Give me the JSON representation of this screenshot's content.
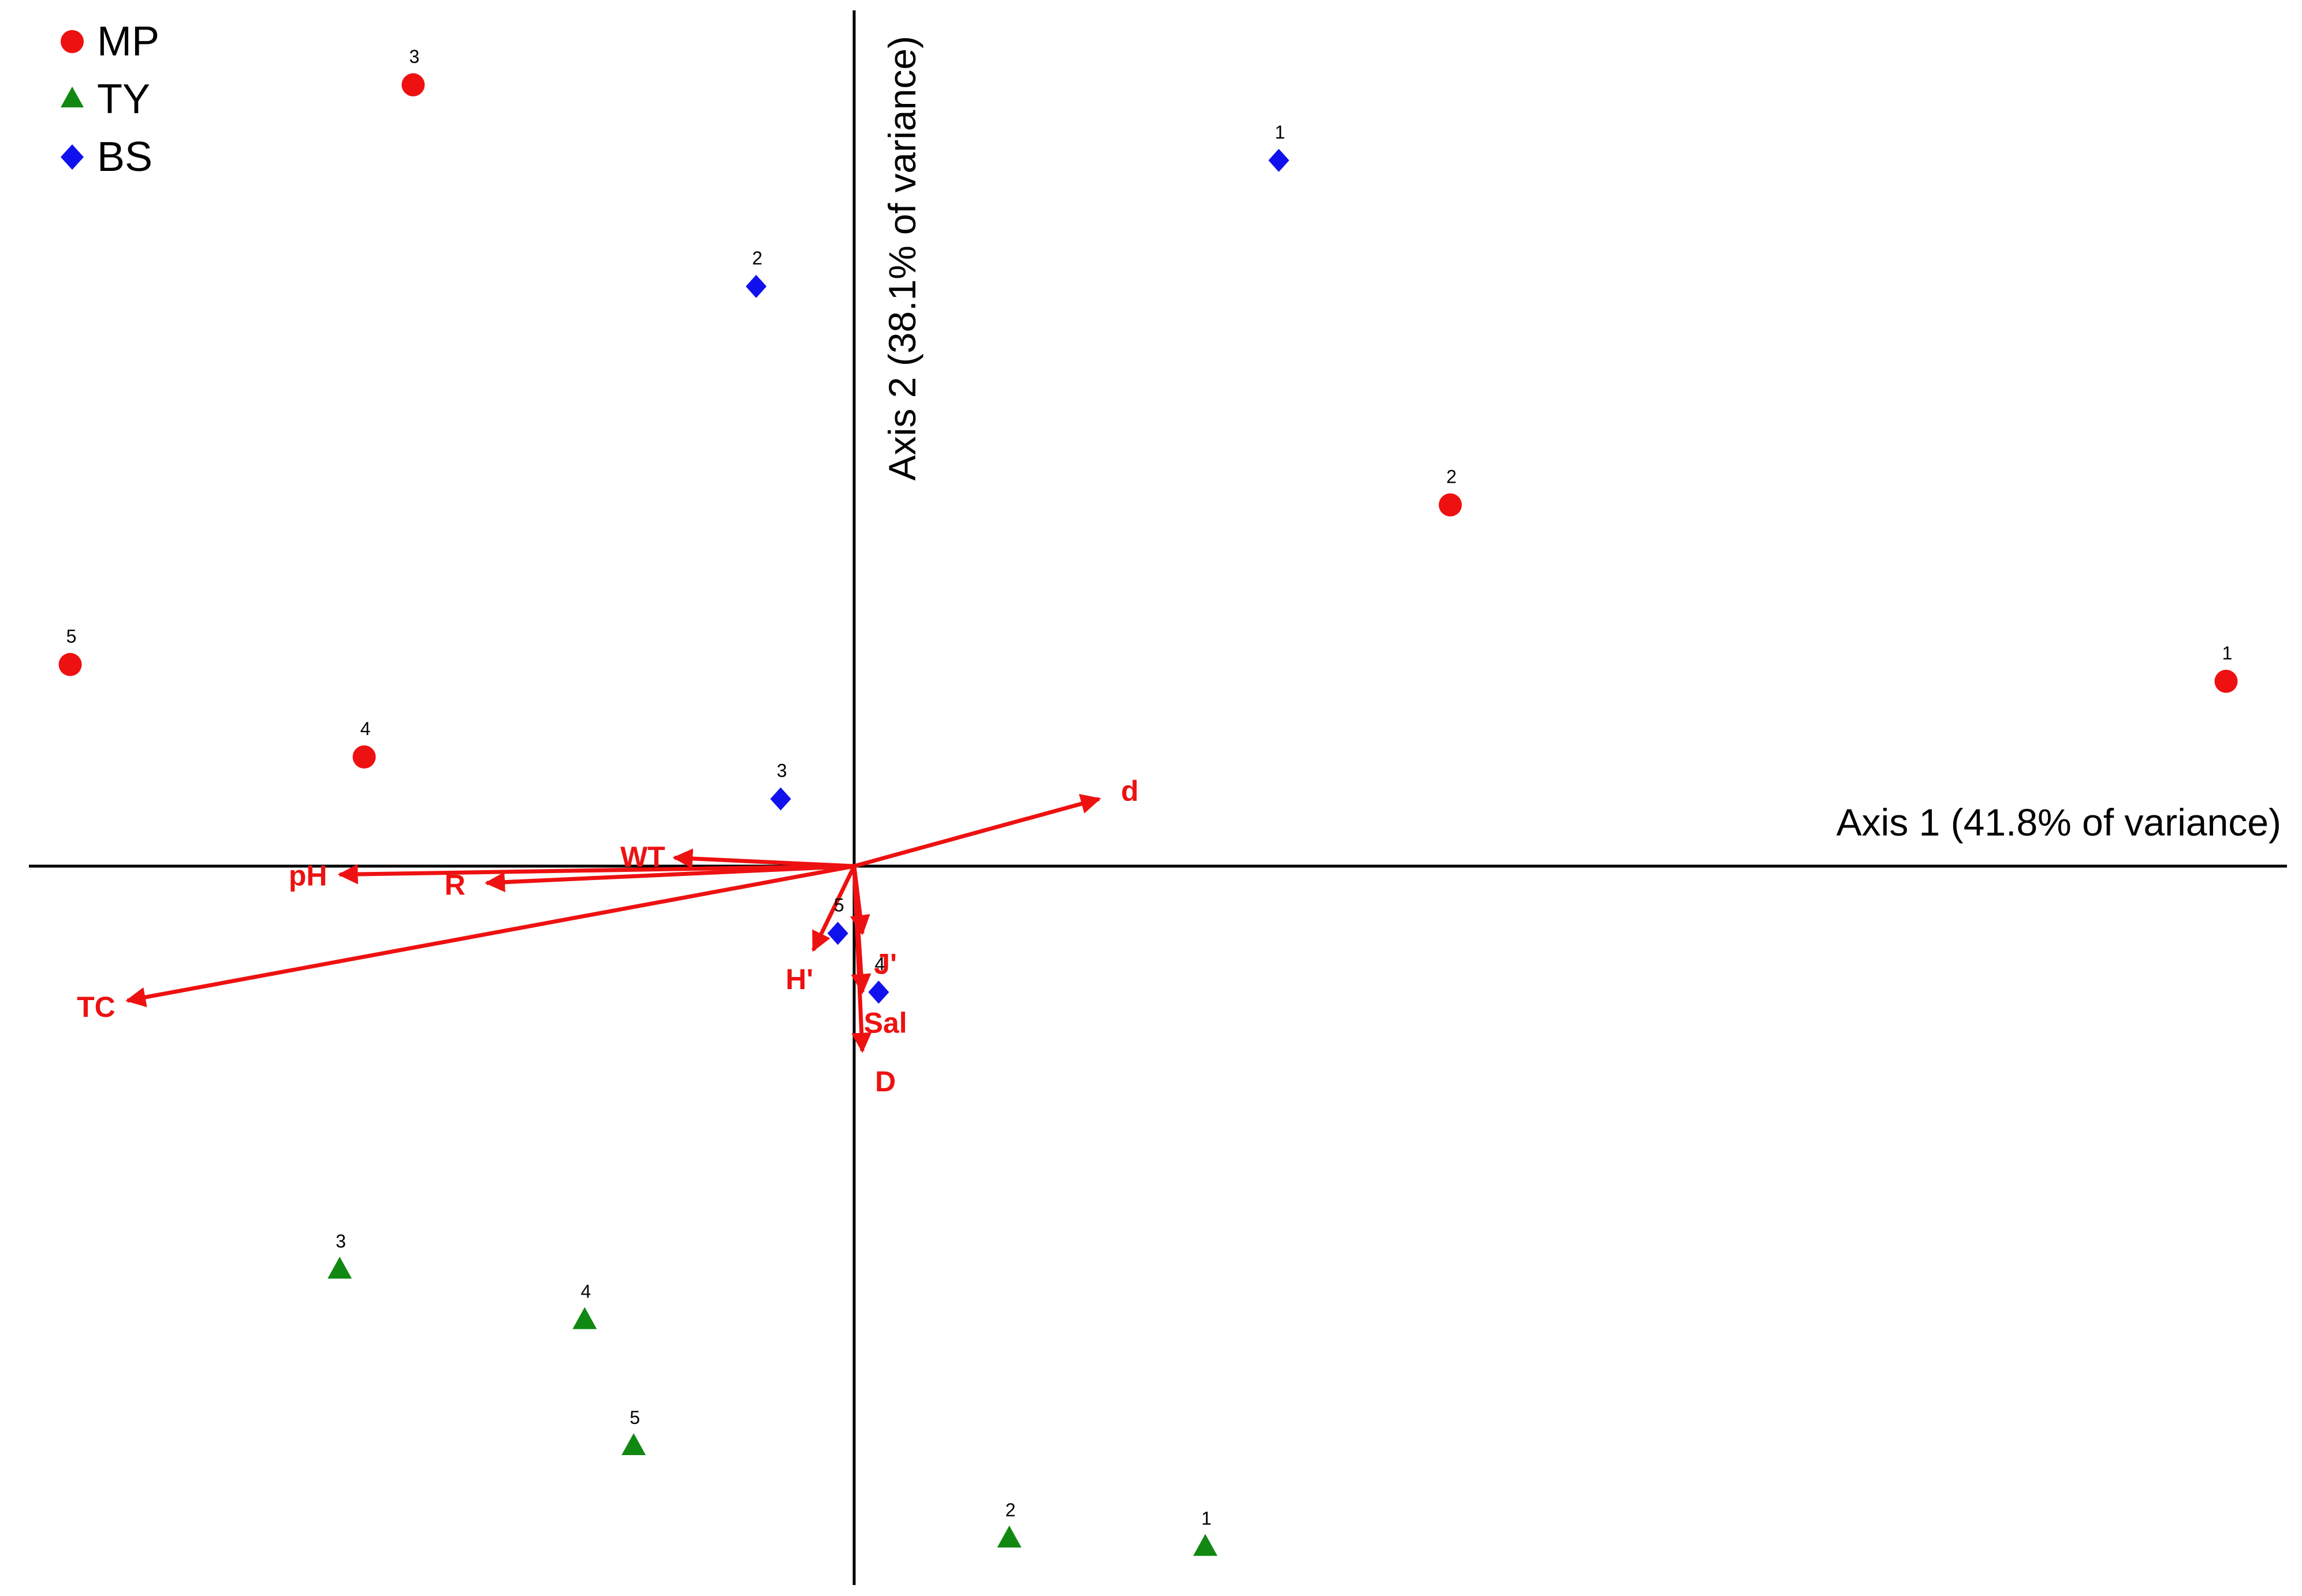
{
  "chart_data": {
    "type": "scatter",
    "subtype": "PCA biplot",
    "xlabel": "Axis 1 (41.8% of variance)",
    "ylabel": "Axis 2 (38.1% of variance)",
    "xlim": [
      -1.0,
      1.7
    ],
    "ylim": [
      -0.86,
      1.0
    ],
    "grid": false,
    "legend_position": "top-left",
    "colors": {
      "MP": "#ee1111",
      "TY": "#118811",
      "BS": "#1111ee",
      "vectors": "#ee1111",
      "axes": "#000000"
    },
    "series": [
      {
        "name": "MP",
        "marker": "circle",
        "points": [
          {
            "label": "1",
            "x": 1.68,
            "y": 0.22
          },
          {
            "label": "2",
            "x": 0.73,
            "y": 0.43
          },
          {
            "label": "3",
            "x": -0.54,
            "y": 0.93
          },
          {
            "label": "4",
            "x": -0.6,
            "y": 0.13
          },
          {
            "label": "5",
            "x": -0.96,
            "y": 0.24
          }
        ]
      },
      {
        "name": "TY",
        "marker": "triangle",
        "points": [
          {
            "label": "1",
            "x": 0.43,
            "y": -0.81
          },
          {
            "label": "2",
            "x": 0.19,
            "y": -0.8
          },
          {
            "label": "3",
            "x": -0.63,
            "y": -0.48
          },
          {
            "label": "4",
            "x": -0.33,
            "y": -0.54
          },
          {
            "label": "5",
            "x": -0.27,
            "y": -0.69
          }
        ]
      },
      {
        "name": "BS",
        "marker": "diamond",
        "points": [
          {
            "label": "1",
            "x": 0.52,
            "y": 0.84
          },
          {
            "label": "2",
            "x": -0.12,
            "y": 0.69
          },
          {
            "label": "3",
            "x": -0.09,
            "y": 0.08
          },
          {
            "label": "4",
            "x": 0.03,
            "y": -0.15
          },
          {
            "label": "5",
            "x": -0.02,
            "y": -0.08
          }
        ]
      }
    ],
    "vectors": [
      {
        "label": "d",
        "x": 0.3,
        "y": 0.08
      },
      {
        "label": "WT",
        "x": -0.22,
        "y": 0.01
      },
      {
        "label": "pH",
        "x": -0.63,
        "y": -0.01
      },
      {
        "label": "R",
        "x": -0.45,
        "y": -0.02
      },
      {
        "label": "TC",
        "x": -0.89,
        "y": -0.16
      },
      {
        "label": "J'",
        "x": 0.01,
        "y": -0.08
      },
      {
        "label": "H'",
        "x": -0.05,
        "y": -0.1
      },
      {
        "label": "Sal",
        "x": 0.01,
        "y": -0.15
      },
      {
        "label": "D",
        "x": 0.01,
        "y": -0.22
      }
    ]
  }
}
